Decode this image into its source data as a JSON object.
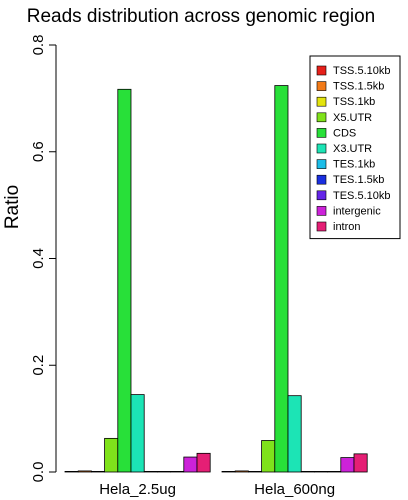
{
  "chart_data": {
    "type": "bar",
    "title": "Reads distribution across genomic region",
    "xlabel": "",
    "ylabel": "Ratio",
    "ylim": [
      0,
      0.8
    ],
    "yticks": [
      "0.0",
      "0.2",
      "0.4",
      "0.6",
      "0.8"
    ],
    "grid": false,
    "legend_position": "top-right",
    "categories": [
      "Hela_2.5ug",
      "Hela_600ng"
    ],
    "series": [
      {
        "name": "TSS.5.10kb",
        "color": "#E6201A",
        "values": [
          0.001,
          0.001
        ]
      },
      {
        "name": "TSS.1.5kb",
        "color": "#F27A17",
        "values": [
          0.002,
          0.002
        ]
      },
      {
        "name": "TSS.1kb",
        "color": "#E4E40E",
        "values": [
          0.0,
          0.0
        ]
      },
      {
        "name": "X5.UTR",
        "color": "#7FE21B",
        "values": [
          0.063,
          0.059
        ]
      },
      {
        "name": "CDS",
        "color": "#28E039",
        "values": [
          0.717,
          0.724
        ]
      },
      {
        "name": "X3.UTR",
        "color": "#1CE4B5",
        "values": [
          0.145,
          0.143
        ]
      },
      {
        "name": "TES.1kb",
        "color": "#1CBDE8",
        "values": [
          0.0,
          0.0
        ]
      },
      {
        "name": "TES.1.5kb",
        "color": "#1A2FE0",
        "values": [
          0.001,
          0.001
        ]
      },
      {
        "name": "TES.5.10kb",
        "color": "#6425E8",
        "values": [
          0.001,
          0.001
        ]
      },
      {
        "name": "intergenic",
        "color": "#CC22D9",
        "values": [
          0.028,
          0.027
        ]
      },
      {
        "name": "intron",
        "color": "#E51F75",
        "values": [
          0.035,
          0.034
        ]
      }
    ]
  }
}
